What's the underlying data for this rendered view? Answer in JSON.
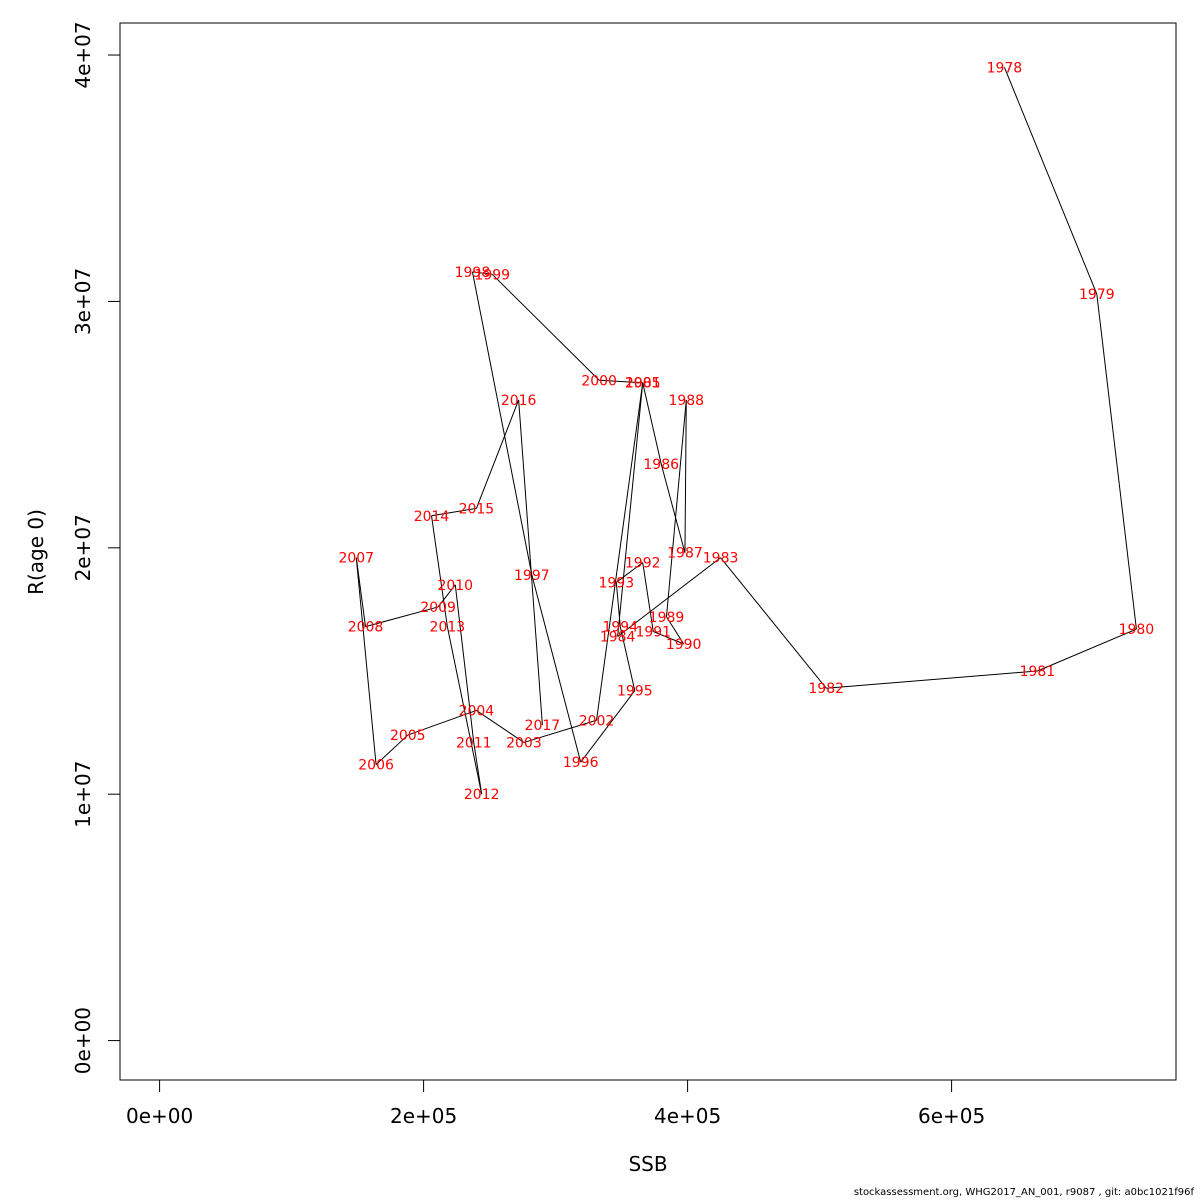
{
  "footer": "stockassessment.org, WHG2017_AN_001, r9087 , git: a0bc1021f96f",
  "chart_data": {
    "type": "line",
    "title": "",
    "xlabel": "SSB",
    "ylabel": "R(age 0)",
    "xlim": [
      -30000,
      770000
    ],
    "ylim": [
      -1600000,
      41300000
    ],
    "x_ticks": [
      0,
      200000,
      400000,
      600000
    ],
    "x_tick_labels": [
      "0e+00",
      "2e+05",
      "4e+05",
      "6e+05"
    ],
    "y_ticks": [
      0,
      10000000,
      20000000,
      30000000,
      40000000
    ],
    "y_tick_labels": [
      "0e+00",
      "1e+07",
      "2e+07",
      "3e+07",
      "4e+07"
    ],
    "grid": false,
    "line_color": "#000000",
    "label_color": "#ff0000",
    "points": [
      {
        "year": "1978",
        "x": 640000,
        "y": 39500000
      },
      {
        "year": "1979",
        "x": 710000,
        "y": 30300000
      },
      {
        "year": "1980",
        "x": 740000,
        "y": 16700000
      },
      {
        "year": "1981",
        "x": 665000,
        "y": 15000000
      },
      {
        "year": "1982",
        "x": 505000,
        "y": 14300000
      },
      {
        "year": "1983",
        "x": 425000,
        "y": 19600000
      },
      {
        "year": "1984",
        "x": 347000,
        "y": 16400000
      },
      {
        "year": "1985",
        "x": 366000,
        "y": 26700000
      },
      {
        "year": "1986",
        "x": 380000,
        "y": 23400000
      },
      {
        "year": "1987",
        "x": 398000,
        "y": 19800000
      },
      {
        "year": "1988",
        "x": 399000,
        "y": 26000000
      },
      {
        "year": "1989",
        "x": 384000,
        "y": 17200000
      },
      {
        "year": "1990",
        "x": 397000,
        "y": 16100000
      },
      {
        "year": "1991",
        "x": 374000,
        "y": 16600000
      },
      {
        "year": "1992",
        "x": 366000,
        "y": 19400000
      },
      {
        "year": "1993",
        "x": 346000,
        "y": 18600000
      },
      {
        "year": "1994",
        "x": 349000,
        "y": 16800000
      },
      {
        "year": "1995",
        "x": 360000,
        "y": 14200000
      },
      {
        "year": "1996",
        "x": 319000,
        "y": 11300000
      },
      {
        "year": "1997",
        "x": 282000,
        "y": 18900000
      },
      {
        "year": "1998",
        "x": 237000,
        "y": 31200000
      },
      {
        "year": "1999",
        "x": 252000,
        "y": 31100000
      },
      {
        "year": "2000",
        "x": 333000,
        "y": 26800000
      },
      {
        "year": "2001",
        "x": 366000,
        "y": 26700000
      },
      {
        "year": "2002",
        "x": 331000,
        "y": 13000000
      },
      {
        "year": "2003",
        "x": 276000,
        "y": 12100000
      },
      {
        "year": "2004",
        "x": 240000,
        "y": 13400000
      },
      {
        "year": "2005",
        "x": 188000,
        "y": 12400000
      },
      {
        "year": "2006",
        "x": 164000,
        "y": 11200000
      },
      {
        "year": "2007",
        "x": 149000,
        "y": 19600000
      },
      {
        "year": "2008",
        "x": 156000,
        "y": 16800000
      },
      {
        "year": "2009",
        "x": 211000,
        "y": 17600000
      },
      {
        "year": "2010",
        "x": 224000,
        "y": 18500000
      },
      {
        "year": "2011",
        "x": 238000,
        "y": 12100000
      },
      {
        "year": "2012",
        "x": 244000,
        "y": 10000000
      },
      {
        "year": "2013",
        "x": 218000,
        "y": 16800000
      },
      {
        "year": "2014",
        "x": 206000,
        "y": 21300000
      },
      {
        "year": "2015",
        "x": 240000,
        "y": 21600000
      },
      {
        "year": "2016",
        "x": 272000,
        "y": 26000000
      },
      {
        "year": "2017",
        "x": 290000,
        "y": 12800000
      }
    ]
  }
}
